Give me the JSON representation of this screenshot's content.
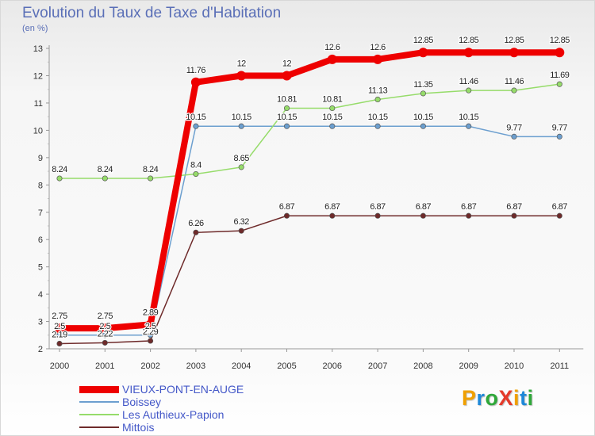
{
  "title": "Evolution du Taux de Taxe d'Habitation",
  "subtitle": "(en %)",
  "logo": {
    "text": "ProXiti",
    "letters": [
      {
        "ch": "P",
        "color": "#f0a000"
      },
      {
        "ch": "r",
        "color": "#1e88d8"
      },
      {
        "ch": "o",
        "color": "#2fa83a"
      },
      {
        "ch": "X",
        "color": "#e53a2a"
      },
      {
        "ch": "i",
        "color": "#f0a000"
      },
      {
        "ch": "t",
        "color": "#1e88d8"
      },
      {
        "ch": "i",
        "color": "#2fa83a"
      }
    ]
  },
  "chart_data": {
    "type": "line",
    "title": "Evolution du Taux de Taxe d'Habitation",
    "ylabel": "(en %)",
    "xlabel": "",
    "x": [
      "2000",
      "2001",
      "2002",
      "2003",
      "2004",
      "2005",
      "2006",
      "2007",
      "2008",
      "2009",
      "2010",
      "2011"
    ],
    "ylim": [
      2,
      13
    ],
    "yticks": [
      "2",
      "3",
      "4",
      "5",
      "6",
      "7",
      "8",
      "9",
      "10",
      "11",
      "12",
      "13"
    ],
    "grid": false,
    "legend": "bottom-left",
    "series": [
      {
        "name": "Mittois",
        "color": "#6e2a2a",
        "values": [
          2.19,
          2.22,
          2.29,
          6.26,
          6.32,
          6.87,
          6.87,
          6.87,
          6.87,
          6.87,
          6.87,
          6.87
        ],
        "labels": [
          "2.19",
          "2.22",
          "2.29",
          "6.26",
          "6.32",
          "6.87",
          "6.87",
          "6.87",
          "6.87",
          "6.87",
          "6.87",
          "6.87"
        ]
      },
      {
        "name": "Boissey",
        "color": "#6c9fcf",
        "values": [
          2.5,
          2.5,
          2.5,
          10.15,
          10.15,
          10.15,
          10.15,
          10.15,
          10.15,
          10.15,
          9.77,
          9.77
        ],
        "labels": [
          "2.5",
          "2.5",
          "2.5",
          "10.15",
          "10.15",
          "10.15",
          "10.15",
          "10.15",
          "10.15",
          "10.15",
          "9.77",
          "9.77"
        ]
      },
      {
        "name": "Les Authieux-Papion",
        "color": "#96dc6a",
        "values": [
          8.24,
          8.24,
          8.24,
          8.4,
          8.65,
          10.81,
          10.81,
          11.13,
          11.35,
          11.46,
          11.46,
          11.69
        ],
        "labels": [
          "8.24",
          "8.24",
          "8.24",
          "8.4",
          "8.65",
          "10.81",
          "10.81",
          "11.13",
          "11.35",
          "11.46",
          "11.46",
          "11.69"
        ]
      },
      {
        "name": "VIEUX-PONT-EN-AUGE",
        "color": "#ee0000",
        "values": [
          2.75,
          2.75,
          2.89,
          11.76,
          12,
          12,
          12.6,
          12.6,
          12.85,
          12.85,
          12.85,
          12.85
        ],
        "labels": [
          "2.75",
          "2.75",
          "2.89",
          "11.76",
          "12",
          "12",
          "12.6",
          "12.6",
          "12.85",
          "12.85",
          "12.85",
          "12.85"
        ]
      }
    ],
    "legend_order": [
      "VIEUX-PONT-EN-AUGE",
      "Boissey",
      "Les Authieux-Papion",
      "Mittois"
    ]
  }
}
